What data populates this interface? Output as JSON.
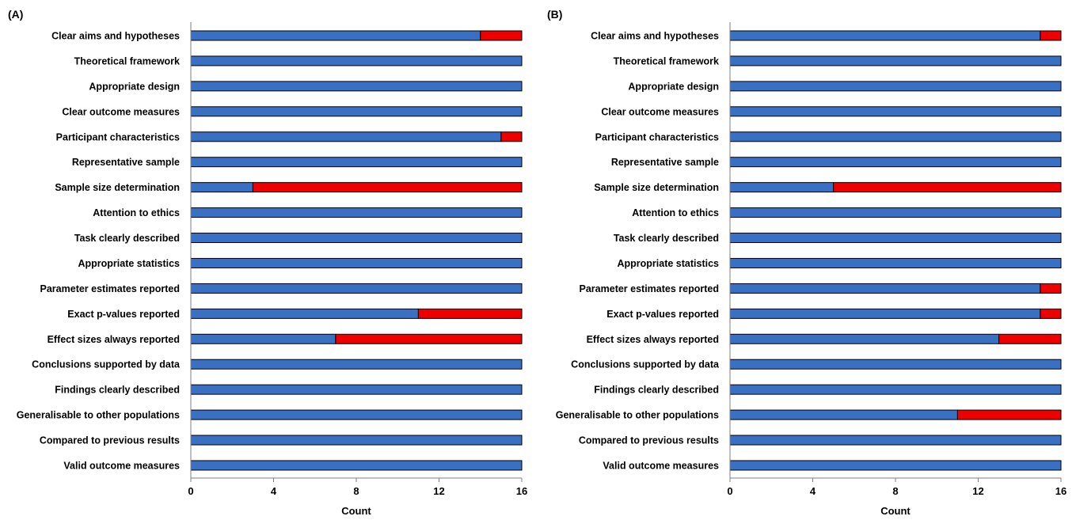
{
  "colors": {
    "yes": "#3a70c4",
    "no": "#ee0000",
    "outline": "#000000"
  },
  "chart_data": [
    {
      "type": "bar",
      "orientation": "horizontal",
      "stacked": true,
      "panel_label": "(A)",
      "title": "",
      "xlabel": "Count",
      "ylabel": "",
      "xlim": [
        0,
        16
      ],
      "xticks": [
        0,
        4,
        8,
        12,
        16
      ],
      "grid": false,
      "categories": [
        "Clear aims and hypotheses",
        "Theoretical framework",
        "Appropriate design",
        "Clear outcome measures",
        "Participant characteristics",
        "Representative sample",
        "Sample size determination",
        "Attention to ethics",
        "Task clearly described",
        "Appropriate statistics",
        "Parameter estimates reported",
        "Exact p-values reported",
        "Effect sizes always reported",
        "Conclusions supported by data",
        "Findings clearly described",
        "Generalisable to other populations",
        "Compared to previous results",
        "Valid outcome measures"
      ],
      "series": [
        {
          "values": [
            14,
            16,
            16,
            16,
            15,
            16,
            3,
            16,
            16,
            16,
            16,
            11,
            7,
            16,
            16,
            16,
            16,
            16
          ]
        },
        {
          "values": [
            2,
            0,
            0,
            0,
            1,
            0,
            13,
            0,
            0,
            0,
            0,
            5,
            9,
            0,
            0,
            0,
            0,
            0
          ]
        }
      ]
    },
    {
      "type": "bar",
      "orientation": "horizontal",
      "stacked": true,
      "panel_label": "(B)",
      "title": "",
      "xlabel": "Count",
      "ylabel": "",
      "xlim": [
        0,
        16
      ],
      "xticks": [
        0,
        4,
        8,
        12,
        16
      ],
      "grid": false,
      "categories": [
        "Clear aims and hypotheses",
        "Theoretical framework",
        "Appropriate design",
        "Clear outcome measures",
        "Participant characteristics",
        "Representative sample",
        "Sample size determination",
        "Attention to ethics",
        "Task clearly described",
        "Appropriate statistics",
        "Parameter estimates reported",
        "Exact p-values reported",
        "Effect sizes always reported",
        "Conclusions supported by data",
        "Findings clearly described",
        "Generalisable to other populations",
        "Compared to previous results",
        "Valid outcome measures"
      ],
      "series": [
        {
          "values": [
            15,
            16,
            16,
            16,
            16,
            16,
            5,
            16,
            16,
            16,
            15,
            15,
            13,
            16,
            16,
            11,
            16,
            16
          ]
        },
        {
          "values": [
            1,
            0,
            0,
            0,
            0,
            0,
            11,
            0,
            0,
            0,
            1,
            1,
            3,
            0,
            0,
            5,
            0,
            0
          ]
        }
      ]
    }
  ]
}
